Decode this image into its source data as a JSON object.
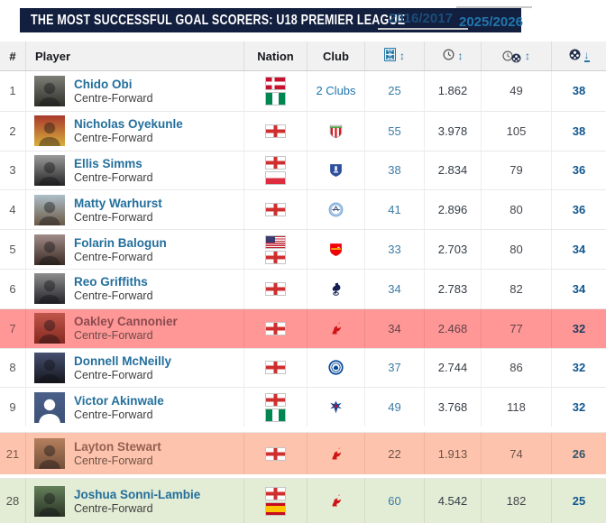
{
  "header": {
    "title": "THE MOST SUCCESSFUL GOAL SCORERS: U18 PREMIER LEAGUE",
    "season_from": "2016/2017",
    "season_to": "2025/2026"
  },
  "table": {
    "columns": {
      "rank": "#",
      "player": "Player",
      "nation": "Nation",
      "club": "Club"
    },
    "sort_columns": [
      {
        "id": "matches",
        "icon": "pitch-icon",
        "sort": "both"
      },
      {
        "id": "minutes-played",
        "icon": "clock-icon",
        "sort": "both"
      },
      {
        "id": "minutes-per-goal",
        "icon": "clock-ball-icon",
        "sort": "both"
      },
      {
        "id": "goals",
        "icon": "ball-icon",
        "sort": "desc"
      }
    ],
    "icons": {
      "sort_both": "↕",
      "sort_desc": "↓"
    },
    "rows": [
      {
        "rank": "1",
        "name": "Chido Obi",
        "position": "Centre-Forward",
        "nations": [
          "denmark",
          "nigeria"
        ],
        "club": "two-clubs",
        "club_text": "2 Clubs",
        "matches": "25",
        "minutes": "1.862",
        "minutes_per_goal": "49",
        "goals": "38",
        "highlight": "none",
        "gap_before": 0,
        "placeholder": false,
        "avatar": [
          "#7d7f76",
          "#30302b"
        ]
      },
      {
        "rank": "2",
        "name": "Nicholas Oyekunle",
        "position": "Centre-Forward",
        "nations": [
          "england"
        ],
        "club": "southampton",
        "club_text": "",
        "matches": "55",
        "minutes": "3.978",
        "minutes_per_goal": "105",
        "goals": "38",
        "highlight": "none",
        "gap_before": 0,
        "placeholder": false,
        "avatar": [
          "#a8392c",
          "#d8b03c"
        ]
      },
      {
        "rank": "3",
        "name": "Ellis Simms",
        "position": "Centre-Forward",
        "nations": [
          "england",
          "poland"
        ],
        "club": "everton",
        "club_text": "",
        "matches": "38",
        "minutes": "2.834",
        "minutes_per_goal": "79",
        "goals": "36",
        "highlight": "none",
        "gap_before": 0,
        "placeholder": false,
        "avatar": [
          "#9a9a9a",
          "#262626"
        ]
      },
      {
        "rank": "4",
        "name": "Matty Warhurst",
        "position": "Centre-Forward",
        "nations": [
          "england"
        ],
        "club": "man-city",
        "club_text": "",
        "matches": "41",
        "minutes": "2.896",
        "minutes_per_goal": "80",
        "goals": "36",
        "highlight": "none",
        "gap_before": 0,
        "placeholder": false,
        "avatar": [
          "#aebfc9",
          "#6b5844"
        ]
      },
      {
        "rank": "5",
        "name": "Folarin Balogun",
        "position": "Centre-Forward",
        "nations": [
          "usa",
          "england"
        ],
        "club": "arsenal",
        "club_text": "",
        "matches": "33",
        "minutes": "2.703",
        "minutes_per_goal": "80",
        "goals": "34",
        "highlight": "none",
        "gap_before": 0,
        "placeholder": false,
        "avatar": [
          "#a18b88",
          "#3a2c24"
        ]
      },
      {
        "rank": "6",
        "name": "Reo Griffiths",
        "position": "Centre-Forward",
        "nations": [
          "england"
        ],
        "club": "tottenham",
        "club_text": "",
        "matches": "34",
        "minutes": "2.783",
        "minutes_per_goal": "82",
        "goals": "34",
        "highlight": "none",
        "gap_before": 0,
        "placeholder": false,
        "avatar": [
          "#8d8d8d",
          "#24242a"
        ]
      },
      {
        "rank": "7",
        "name": "Oakley Cannonier",
        "position": "Centre-Forward",
        "nations": [
          "england"
        ],
        "club": "liverpool",
        "club_text": "",
        "matches": "34",
        "minutes": "2.468",
        "minutes_per_goal": "77",
        "goals": "32",
        "highlight": "red",
        "gap_before": 0,
        "placeholder": false,
        "avatar": [
          "#c0564a",
          "#84281f"
        ]
      },
      {
        "rank": "8",
        "name": "Donnell McNeilly",
        "position": "Centre-Forward",
        "nations": [
          "england"
        ],
        "club": "chelsea",
        "club_text": "",
        "matches": "37",
        "minutes": "2.744",
        "minutes_per_goal": "86",
        "goals": "32",
        "highlight": "none",
        "gap_before": 0,
        "placeholder": false,
        "avatar": [
          "#465070",
          "#15161d"
        ]
      },
      {
        "rank": "9",
        "name": "Victor Akinwale",
        "position": "Centre-Forward",
        "nations": [
          "england",
          "nigeria"
        ],
        "club": "crystal-palace",
        "club_text": "",
        "matches": "49",
        "minutes": "3.768",
        "minutes_per_goal": "118",
        "goals": "32",
        "highlight": "none",
        "gap_before": 0,
        "placeholder": true,
        "avatar": [
          "#4b6089",
          "#3d5278"
        ]
      },
      {
        "rank": "21",
        "name": "Layton Stewart",
        "position": "Centre-Forward",
        "nations": [
          "england"
        ],
        "club": "liverpool",
        "club_text": "",
        "matches": "22",
        "minutes": "1.913",
        "minutes_per_goal": "74",
        "goals": "26",
        "highlight": "peach",
        "gap_before": 6,
        "placeholder": false,
        "avatar": [
          "#b5805e",
          "#74503a"
        ]
      },
      {
        "rank": "28",
        "name": "Joshua Sonni-Lambie",
        "position": "Centre-Forward",
        "nations": [
          "england",
          "spain"
        ],
        "club": "liverpool",
        "club_text": "",
        "matches": "60",
        "minutes": "4.542",
        "minutes_per_goal": "182",
        "goals": "25",
        "highlight": "green",
        "gap_before": 4,
        "placeholder": false,
        "avatar": [
          "#64805a",
          "#2a3326"
        ]
      }
    ]
  },
  "colors": {
    "banner_bg": "#131f3e",
    "accent_blue": "#2478a8",
    "player_link": "#236f9c",
    "goals_blue": "#10568e",
    "highlight_red": "#fe9795",
    "highlight_peach": "#fec3ac",
    "highlight_green": "#e3ecd4"
  }
}
